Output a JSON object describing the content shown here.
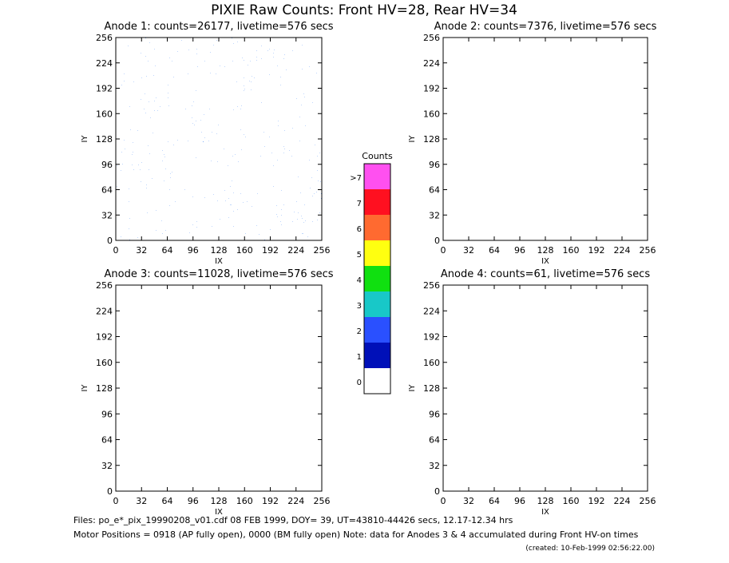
{
  "title": "PIXIE Raw Counts:  Front HV=28, Rear HV=34",
  "chart_data": [
    {
      "type": "heatmap",
      "title": "Anode 1: counts=26177, livetime=576 secs",
      "xlabel": "IX",
      "ylabel": "IY",
      "xlim": [
        0,
        256
      ],
      "ylim": [
        0,
        256
      ],
      "xticks": [
        0,
        32,
        64,
        96,
        128,
        160,
        192,
        224,
        256
      ],
      "yticks": [
        0,
        32,
        64,
        96,
        128,
        160,
        192,
        224,
        256
      ]
    },
    {
      "type": "heatmap",
      "title": "Anode 2: counts=7376, livetime=576 secs",
      "xlabel": "IX",
      "ylabel": "IY",
      "xlim": [
        0,
        256
      ],
      "ylim": [
        0,
        256
      ],
      "xticks": [
        0,
        32,
        64,
        96,
        128,
        160,
        192,
        224,
        256
      ],
      "yticks": [
        0,
        32,
        64,
        96,
        128,
        160,
        192,
        224,
        256
      ]
    },
    {
      "type": "heatmap",
      "title": "Anode 3: counts=11028, livetime=576 secs",
      "xlabel": "IX",
      "ylabel": "IY",
      "xlim": [
        0,
        256
      ],
      "ylim": [
        0,
        256
      ],
      "xticks": [
        0,
        32,
        64,
        96,
        128,
        160,
        192,
        224,
        256
      ],
      "yticks": [
        0,
        32,
        64,
        96,
        128,
        160,
        192,
        224,
        256
      ]
    },
    {
      "type": "heatmap",
      "title": "Anode 4: counts=61, livetime=576 secs",
      "xlabel": "IX",
      "ylabel": "IY",
      "xlim": [
        0,
        256
      ],
      "ylim": [
        0,
        256
      ],
      "xticks": [
        0,
        32,
        64,
        96,
        128,
        160,
        192,
        224,
        256
      ],
      "yticks": [
        0,
        32,
        64,
        96,
        128,
        160,
        192,
        224,
        256
      ]
    }
  ],
  "colorbar": {
    "title": "Counts",
    "labels": [
      "0",
      "1",
      "2",
      "3",
      "4",
      "5",
      "6",
      "7",
      ">7"
    ],
    "colors": [
      "#ffffff",
      "#0010b8",
      "#2a50ff",
      "#18c8c8",
      "#10e010",
      "#ffff10",
      "#ff6a30",
      "#ff1020",
      "#ff50f0"
    ]
  },
  "footer": [
    "Files: po_e*_pix_19990208_v01.cdf    08 FEB 1999, DOY= 39, UT=43810-44426 secs, 12.17-12.34 hrs",
    "Motor Positions = 0918 (AP fully open), 0000 (BM fully open)    Note: data for Anodes 3 & 4 accumulated during Front HV-on times",
    "(created: 10-Feb-1999 02:56:22.00)"
  ]
}
